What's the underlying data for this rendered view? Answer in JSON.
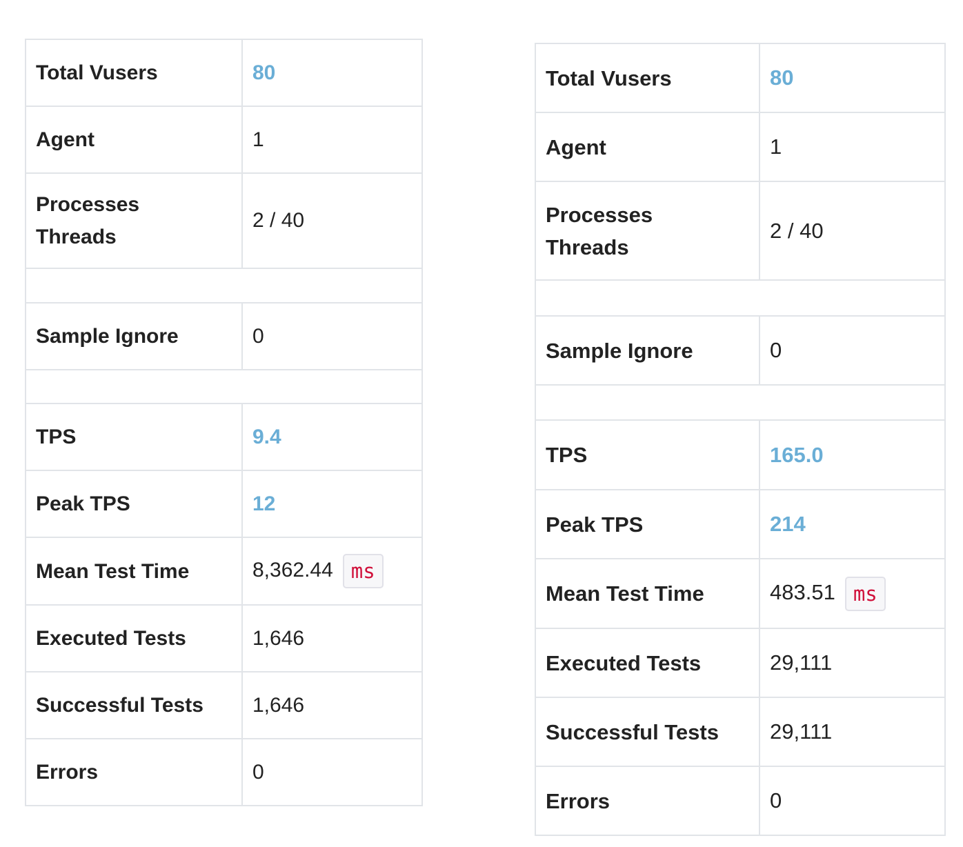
{
  "left_table": {
    "total_vusers_label": "Total Vusers",
    "total_vusers_value": "80",
    "agent_label": "Agent",
    "agent_value": "1",
    "processes_label": "Processes",
    "threads_label": "Threads",
    "processes_threads_value": "2 / 40",
    "sample_ignore_label": "Sample Ignore",
    "sample_ignore_value": "0",
    "tps_label": "TPS",
    "tps_value": "9.4",
    "peak_tps_label": "Peak TPS",
    "peak_tps_value": "12",
    "mean_test_time_label": "Mean Test Time",
    "mean_test_time_value": "8,362.44",
    "mean_test_time_unit": "ms",
    "executed_tests_label": "Executed Tests",
    "executed_tests_value": "1,646",
    "successful_tests_label": "Successful Tests",
    "successful_tests_value": "1,646",
    "errors_label": "Errors",
    "errors_value": "0"
  },
  "right_table": {
    "total_vusers_label": "Total Vusers",
    "total_vusers_value": "80",
    "agent_label": "Agent",
    "agent_value": "1",
    "processes_label": "Processes",
    "threads_label": "Threads",
    "processes_threads_value": "2 / 40",
    "sample_ignore_label": "Sample Ignore",
    "sample_ignore_value": "0",
    "tps_label": "TPS",
    "tps_value": "165.0",
    "peak_tps_label": "Peak TPS",
    "peak_tps_value": "214",
    "mean_test_time_label": "Mean Test Time",
    "mean_test_time_value": "483.51",
    "mean_test_time_unit": "ms",
    "executed_tests_label": "Executed Tests",
    "executed_tests_value": "29,111",
    "successful_tests_label": "Successful Tests",
    "successful_tests_value": "29,111",
    "errors_label": "Errors",
    "errors_value": "0"
  },
  "colors": {
    "highlight_value": "#6aaed6",
    "unit_text": "#d0103a",
    "border": "#e1e4e8"
  }
}
